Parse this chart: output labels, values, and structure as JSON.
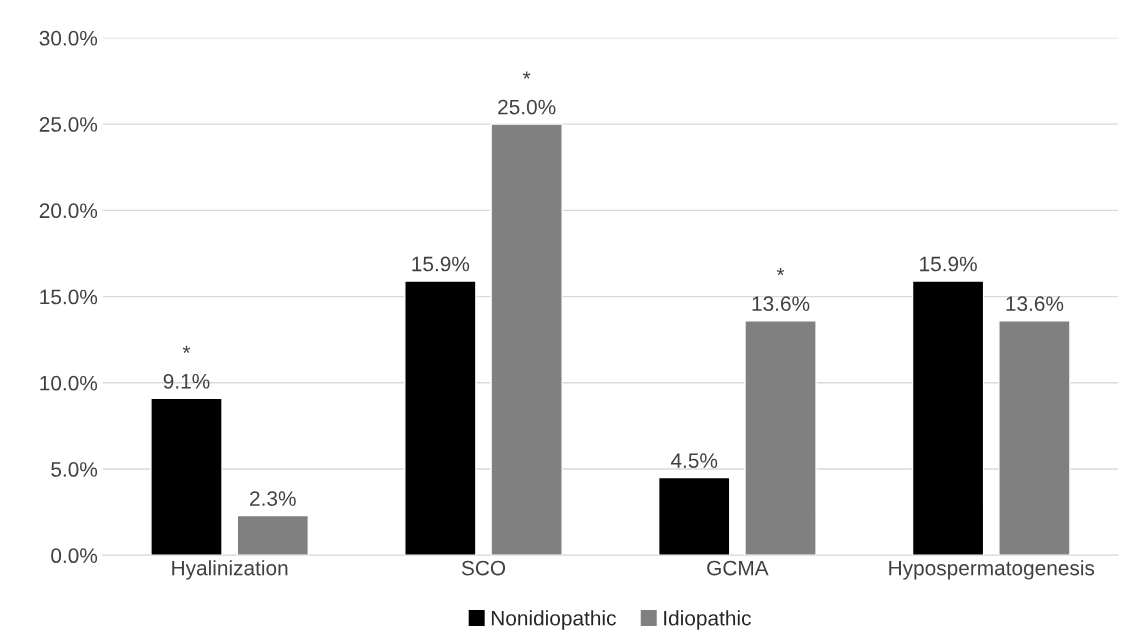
{
  "chart_data": {
    "type": "bar",
    "categories": [
      "Hyalinization",
      "SCO",
      "GCMA",
      "Hypospermatogenesis"
    ],
    "series": [
      {
        "name": "Nonidiopathic",
        "color": "#000000",
        "values": [
          9.1,
          15.9,
          4.5,
          15.9
        ],
        "value_labels": [
          "*\n9.1%",
          "15.9%",
          "4.5%",
          "15.9%"
        ]
      },
      {
        "name": "Idiopathic",
        "color": "#808080",
        "values": [
          2.3,
          25.0,
          13.6,
          13.6
        ],
        "value_labels": [
          "2.3%",
          "*\n25.0%",
          "*\n13.6%",
          "13.6%"
        ]
      }
    ],
    "ylim": [
      0,
      30
    ],
    "yticks": [
      {
        "value": 0,
        "label": "0.0%"
      },
      {
        "value": 5,
        "label": "5.0%"
      },
      {
        "value": 10,
        "label": "10.0%"
      },
      {
        "value": 15,
        "label": "15.0%"
      },
      {
        "value": 20,
        "label": "20.0%"
      },
      {
        "value": 25,
        "label": "25.0%"
      },
      {
        "value": 30,
        "label": "30.0%"
      }
    ],
    "grid": "y",
    "legend": "bottom"
  }
}
